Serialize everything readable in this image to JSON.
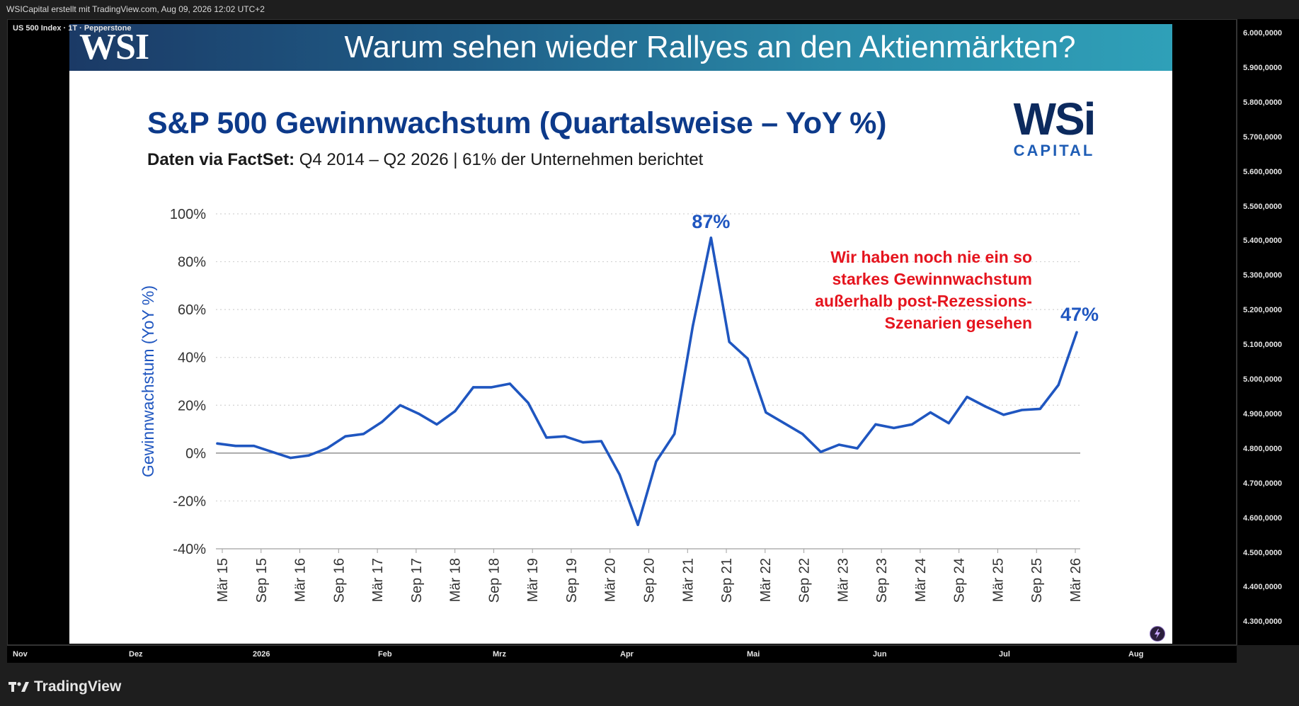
{
  "topbar": {
    "credit": "WSICapital erstellt mit TradingView.com, Aug 09, 2026 12:02 UTC+2"
  },
  "symbol": {
    "label": "US 500 Index · 1T · Pepperstone"
  },
  "price_axis": [
    "6.000,0000",
    "5.900,0000",
    "5.800,0000",
    "5.700,0000",
    "5.600,0000",
    "5.500,0000",
    "5.400,0000",
    "5.300,0000",
    "5.200,0000",
    "5.100,0000",
    "5.000,0000",
    "4.900,0000",
    "4.800,0000",
    "4.700,0000",
    "4.600,0000",
    "4.500,0000",
    "4.400,0000",
    "4.300,0000"
  ],
  "time_axis": [
    "Nov",
    "Dez",
    "2026",
    "Feb",
    "Mrz",
    "Apr",
    "Mai",
    "Jun",
    "Jul",
    "Aug"
  ],
  "footer": {
    "brand": "TradingView"
  },
  "slide": {
    "banner_logo": "WSI",
    "header_title": "Warum sehen wieder Rallyes an den Aktienmärkten?",
    "logo_main": "WSi",
    "logo_sub": "CAPITAL",
    "subtitle_prefix": "Daten via FactSet:",
    "subtitle_rest": " Q4 2014 – Q2 2026 | 61% der Unternehmen berichtet",
    "annotation": [
      "Wir haben noch nie ein so",
      "starkes Gewinnwachstum",
      "außerhalb post-Rezessions-",
      "Szenarien gesehen"
    ]
  },
  "colors": {
    "line": "#1f56c0",
    "title": "#0d3a8a",
    "annotation": "#e5141e",
    "accent": "#2a8aa8"
  },
  "chart_data": {
    "type": "line",
    "title": "S&P 500 Gewinnwachstum (Quartalsweise – YoY %)",
    "ylabel": "Gewinnwachstum (YoY %)",
    "xlabel": "",
    "ylim": [
      -40,
      100
    ],
    "yticks": [
      -40,
      -20,
      0,
      20,
      40,
      60,
      80,
      100
    ],
    "ytick_labels": [
      "-40%",
      "-20%",
      "0%",
      "20%",
      "40%",
      "60%",
      "80%",
      "100%"
    ],
    "x_labels": [
      "Mär 15",
      "Sep 15",
      "Mär 16",
      "Sep 16",
      "Mär 17",
      "Sep 17",
      "Mär 18",
      "Sep 18",
      "Mär 19",
      "Sep 19",
      "Mär 20",
      "Sep 20",
      "Mär 21",
      "Sep 21",
      "Mär 22",
      "Sep 22",
      "Mär 23",
      "Sep 23",
      "Mär 24",
      "Sep 24",
      "Mär 25",
      "Sep 25",
      "Mär 26"
    ],
    "grid": true,
    "series": [
      {
        "values": [
          4,
          3,
          3,
          0.5,
          -2,
          -1,
          2,
          7,
          8,
          13,
          20,
          16.5,
          12,
          17.5,
          27.5,
          27.5,
          29,
          21,
          6.5,
          7,
          4.5,
          5,
          -9,
          -30,
          -3.5,
          8,
          53,
          90,
          46.5,
          39.5,
          17,
          12.5,
          8,
          0.5,
          3.5,
          2,
          12,
          10.5,
          12,
          17,
          12.5,
          23.5,
          19.5,
          16,
          18,
          18.5,
          28.5,
          50.5
        ]
      }
    ],
    "annotations": [
      {
        "text": "87%"
      },
      {
        "text": "47%"
      }
    ]
  }
}
